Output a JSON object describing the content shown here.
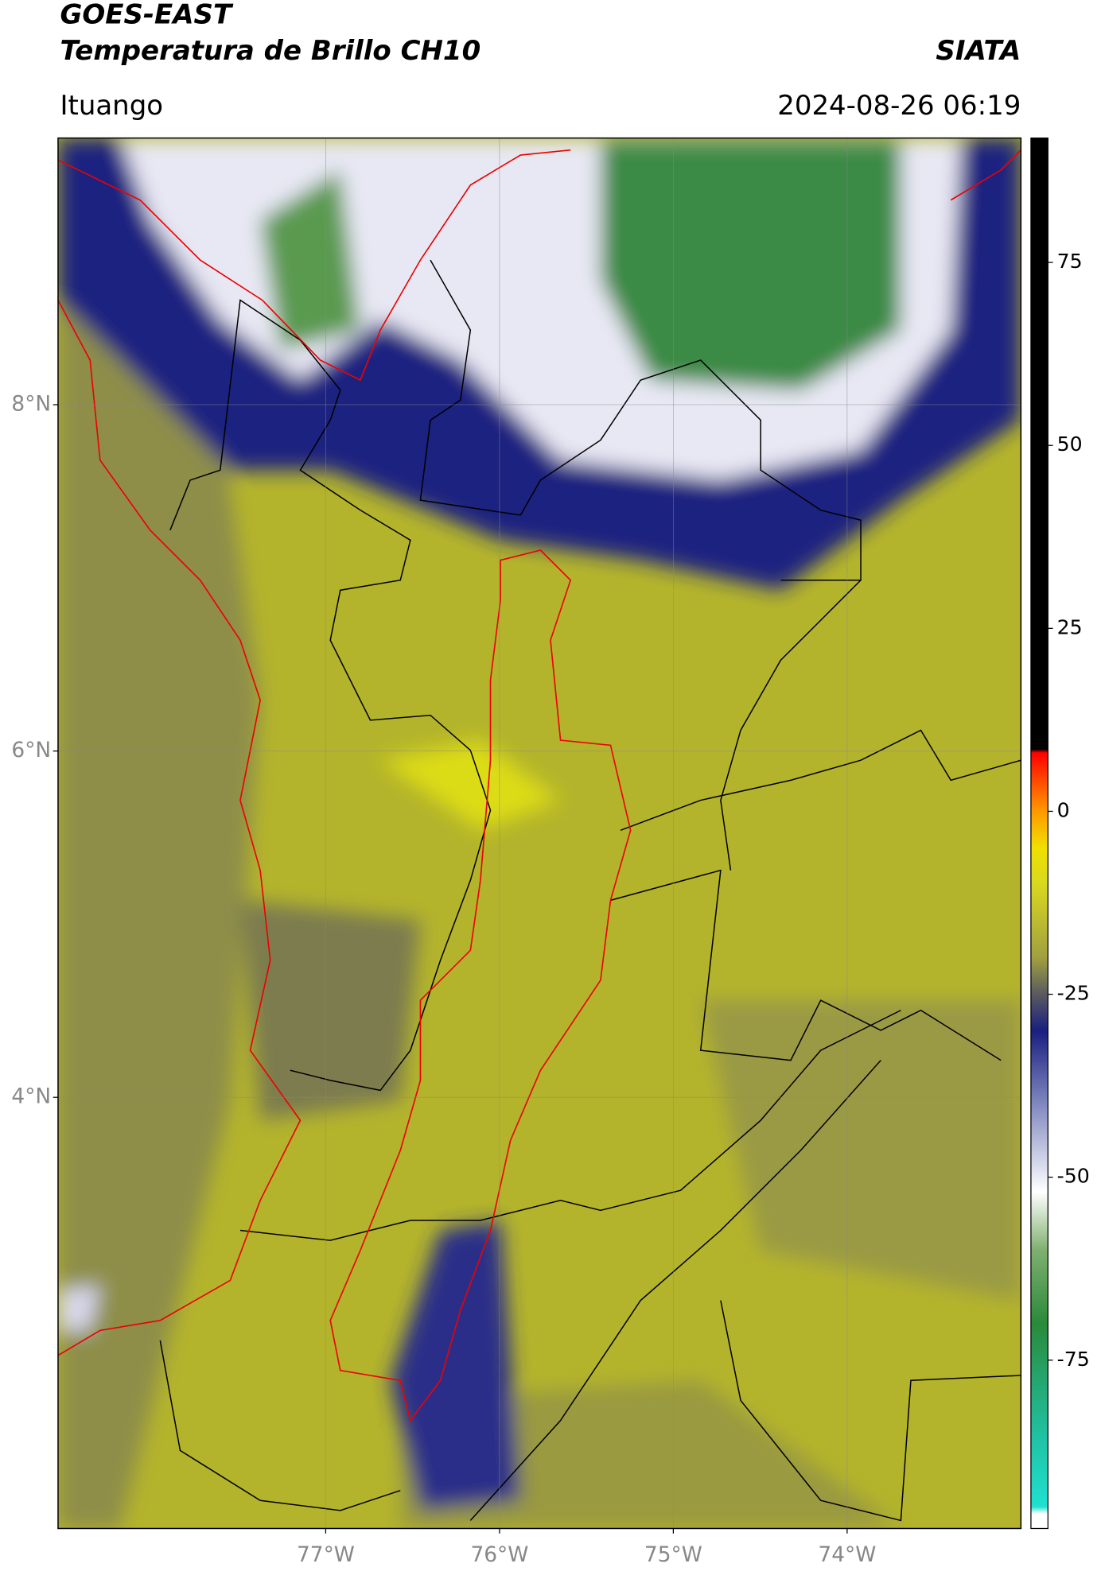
{
  "header": {
    "title": "GOES-EAST",
    "subtitle": "Temperatura de Brillo CH10",
    "source": "SIATA",
    "location": "Ituango",
    "datetime": "2024-08-26 06:19"
  },
  "map": {
    "lon_lim": [
      -78.54,
      -73.0
    ],
    "lat_lim": [
      1.51,
      9.54
    ],
    "lon_ticks": [
      {
        "value": -77,
        "label": "77°W"
      },
      {
        "value": -76,
        "label": "76°W"
      },
      {
        "value": -75,
        "label": "75°W"
      },
      {
        "value": -74,
        "label": "74°W"
      }
    ],
    "lat_ticks": [
      {
        "value": 8,
        "label": "8°N"
      },
      {
        "value": 6,
        "label": "6°N"
      },
      {
        "value": 4,
        "label": "4°N"
      }
    ]
  },
  "colorbar": {
    "lim": [
      -98,
      92
    ],
    "ticks": [
      75,
      50,
      25,
      0,
      -25,
      -50,
      -75
    ],
    "colors": [
      {
        "value": -98,
        "color": "#ffffff"
      },
      {
        "value": -96,
        "color": "#ffffff"
      },
      {
        "value": -95,
        "color": "#20e0d0"
      },
      {
        "value": -85,
        "color": "#20c0a0"
      },
      {
        "value": -70,
        "color": "#2a8a3a"
      },
      {
        "value": -60,
        "color": "#7fb070"
      },
      {
        "value": -52,
        "color": "#ffffff"
      },
      {
        "value": -40,
        "color": "#8088c0"
      },
      {
        "value": -30,
        "color": "#1a1f80"
      },
      {
        "value": -25,
        "color": "#5a5a60"
      },
      {
        "value": -20,
        "color": "#a0a040"
      },
      {
        "value": -10,
        "color": "#d8d820"
      },
      {
        "value": -5,
        "color": "#f0e000"
      },
      {
        "value": 0,
        "color": "#ff9900"
      },
      {
        "value": 8,
        "color": "#ff0000"
      },
      {
        "value": 8.5,
        "color": "#000000"
      },
      {
        "value": 92,
        "color": "#000000"
      }
    ]
  }
}
